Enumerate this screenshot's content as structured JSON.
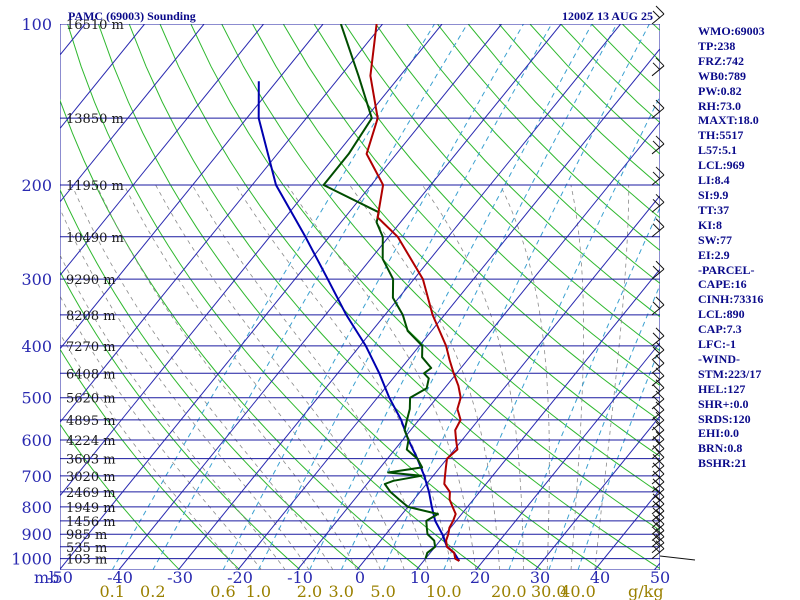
{
  "chart_data": {
    "type": "line",
    "title": "PAMC (69003) Sounding",
    "valid_time": "1200Z 13 AUG 25",
    "x_axis_unit": "mb",
    "temperature_ticks": [
      "-50",
      "-40",
      "-30",
      "-20",
      "-10",
      "0",
      "10",
      "20",
      "30",
      "40",
      "50"
    ],
    "mixing_ratio_unit": "g/kg",
    "mixing_ratio_ticks": [
      "0.1",
      "0.2",
      "0.6",
      "1.0",
      "2.0",
      "3.0",
      "5.0",
      "10.0",
      "20.0",
      "30.0",
      "40.0"
    ],
    "pressure_ticks": [
      {
        "p": 100,
        "label": "100"
      },
      {
        "p": 200,
        "label": "200"
      },
      {
        "p": 300,
        "label": "300"
      },
      {
        "p": 400,
        "label": "400"
      },
      {
        "p": 500,
        "label": "500"
      },
      {
        "p": 600,
        "label": "600"
      },
      {
        "p": 700,
        "label": "700"
      },
      {
        "p": 800,
        "label": "800"
      },
      {
        "p": 900,
        "label": "900"
      },
      {
        "p": 1000,
        "label": "1000"
      }
    ],
    "height_levels": [
      {
        "p": 100,
        "label": "16510 m"
      },
      {
        "p": 150,
        "label": "13850 m"
      },
      {
        "p": 200,
        "label": "11950 m"
      },
      {
        "p": 250,
        "label": "10490 m"
      },
      {
        "p": 300,
        "label": "9290 m"
      },
      {
        "p": 350,
        "label": "8208 m"
      },
      {
        "p": 400,
        "label": "7270 m"
      },
      {
        "p": 450,
        "label": "6408 m"
      },
      {
        "p": 500,
        "label": "5620 m"
      },
      {
        "p": 550,
        "label": "4895 m"
      },
      {
        "p": 600,
        "label": "4224 m"
      },
      {
        "p": 650,
        "label": "3603 m"
      },
      {
        "p": 700,
        "label": "3020 m"
      },
      {
        "p": 750,
        "label": "2469 m"
      },
      {
        "p": 800,
        "label": "1949 m"
      },
      {
        "p": 850,
        "label": "1456 m"
      },
      {
        "p": 900,
        "label": "985 m"
      },
      {
        "p": 950,
        "label": "535 m"
      },
      {
        "p": 1000,
        "label": "103 m"
      }
    ],
    "temperature": [
      [
        1010,
        16
      ],
      [
        1000,
        15
      ],
      [
        975,
        14
      ],
      [
        950,
        12
      ],
      [
        925,
        11
      ],
      [
        900,
        10.5
      ],
      [
        875,
        9.8
      ],
      [
        850,
        9.5
      ],
      [
        825,
        9
      ],
      [
        800,
        7.5
      ],
      [
        775,
        6
      ],
      [
        750,
        5
      ],
      [
        725,
        3
      ],
      [
        700,
        2
      ],
      [
        675,
        1
      ],
      [
        650,
        0
      ],
      [
        625,
        0.5
      ],
      [
        600,
        -1
      ],
      [
        575,
        -2.5
      ],
      [
        550,
        -3
      ],
      [
        525,
        -5
      ],
      [
        500,
        -6
      ],
      [
        475,
        -8
      ],
      [
        450,
        -10.5
      ],
      [
        425,
        -13
      ],
      [
        400,
        -15.5
      ],
      [
        350,
        -22
      ],
      [
        300,
        -28.5
      ],
      [
        250,
        -38.5
      ],
      [
        230,
        -44.5
      ],
      [
        200,
        -48
      ],
      [
        175,
        -55
      ],
      [
        150,
        -58
      ],
      [
        125,
        -65
      ],
      [
        100,
        -71
      ]
    ],
    "dewpoint": [
      [
        1000,
        10
      ],
      [
        975,
        9.5
      ],
      [
        950,
        10
      ],
      [
        925,
        9
      ],
      [
        900,
        7
      ],
      [
        875,
        6
      ],
      [
        850,
        5
      ],
      [
        825,
        6
      ],
      [
        800,
        0
      ],
      [
        775,
        -2.5
      ],
      [
        750,
        -5
      ],
      [
        725,
        -7
      ],
      [
        715,
        -6
      ],
      [
        700,
        -2
      ],
      [
        690,
        -8
      ],
      [
        675,
        -3
      ],
      [
        650,
        -5
      ],
      [
        625,
        -8
      ],
      [
        600,
        -9
      ],
      [
        575,
        -11
      ],
      [
        550,
        -12
      ],
      [
        525,
        -13
      ],
      [
        500,
        -14.5
      ],
      [
        480,
        -13
      ],
      [
        460,
        -14
      ],
      [
        450,
        -15.5
      ],
      [
        440,
        -15
      ],
      [
        420,
        -18
      ],
      [
        400,
        -19.5
      ],
      [
        375,
        -24
      ],
      [
        350,
        -27
      ],
      [
        325,
        -31
      ],
      [
        300,
        -33.5
      ],
      [
        275,
        -38
      ],
      [
        250,
        -41
      ],
      [
        235,
        -44
      ],
      [
        225,
        -45
      ],
      [
        200,
        -58
      ],
      [
        175,
        -58
      ],
      [
        150,
        -59
      ],
      [
        125,
        -67
      ],
      [
        100,
        -77
      ]
    ],
    "parcel_path": [
      [
        1010,
        16
      ],
      [
        975,
        14
      ],
      [
        950,
        12
      ],
      [
        900,
        9.5
      ],
      [
        850,
        6.5
      ],
      [
        800,
        4
      ],
      [
        750,
        1.5
      ],
      [
        700,
        -1.5
      ],
      [
        650,
        -5
      ],
      [
        600,
        -9
      ],
      [
        550,
        -13
      ],
      [
        500,
        -18
      ],
      [
        450,
        -23
      ],
      [
        400,
        -29
      ],
      [
        350,
        -36.5
      ],
      [
        300,
        -44.5
      ],
      [
        250,
        -54
      ],
      [
        200,
        -66
      ],
      [
        150,
        -78
      ],
      [
        128,
        -83
      ]
    ],
    "wind_barbs_pressure": [
      1000,
      975,
      950,
      925,
      900,
      875,
      850,
      825,
      800,
      775,
      750,
      725,
      700,
      675,
      650,
      625,
      600,
      575,
      550,
      525,
      500,
      475,
      450,
      425,
      400,
      350,
      300,
      250,
      225,
      200,
      175,
      150,
      125,
      100
    ],
    "colors": {
      "isobar": "#1a1aa0",
      "isotherm": "#2a2ab0",
      "dry_adiabat": "#2fb82f",
      "moist_adiabat": "#8a8a8a",
      "mixing_ratio": "#3aa0d0",
      "temperature": "#b00000",
      "dewpoint": "#004d00",
      "parcel": "#0000b0",
      "mixing_labels": "#9a8000",
      "axis_text": "#2a2ab0",
      "barb": "#111111"
    }
  },
  "indices": [
    "WMO:69003",
    "TP:238",
    "FRZ:742",
    "WB0:789",
    "PW:0.82",
    "RH:73.0",
    "MAXT:18.0",
    "TH:5517",
    "L57:5.1",
    "LCL:969",
    "LI:8.4",
    "SI:9.9",
    "TT:37",
    "KI:8",
    "SW:77",
    "EI:2.9",
    "-PARCEL-",
    "CAPE:16",
    "CINH:73316",
    "LCL:890",
    "CAP:7.3",
    "LFC:-1",
    "-WIND-",
    "STM:223/17",
    "HEL:127",
    "SHR+:0.0",
    "SRDS:120",
    "EHI:0.0",
    "BRN:0.8",
    "BSHR:21"
  ]
}
